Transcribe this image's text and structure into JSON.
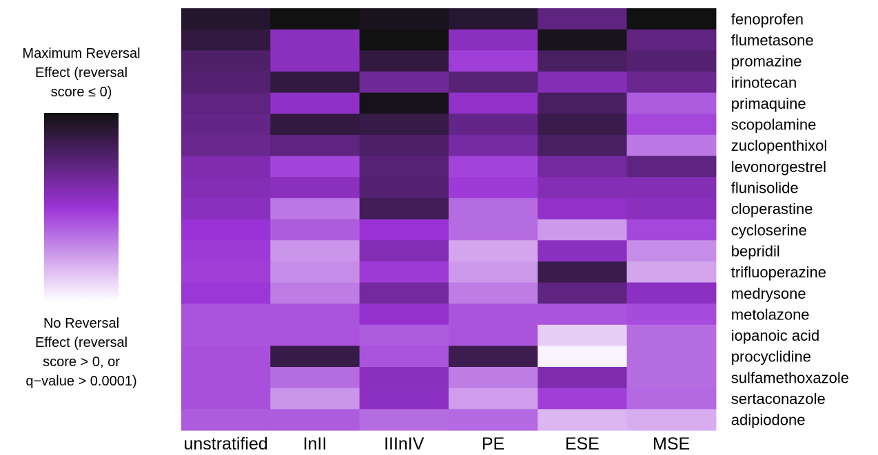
{
  "legend": {
    "max_label": [
      "Maximum Reversal",
      "Effect (reversal",
      "score ≤ 0)"
    ],
    "min_label": [
      "No Reversal",
      "Effect (reversal",
      "score > 0, or",
      "q−value > 0.0001)"
    ],
    "colors": {
      "max": "#111111",
      "mid": "#9a33d6",
      "min": "#ffffff"
    }
  },
  "chart_data": {
    "type": "heatmap",
    "title": "",
    "xlabel": "",
    "ylabel": "",
    "color_scale": "0 = No Reversal Effect (white), 1 = Maximum Reversal Effect (black), 0.5 = purple",
    "x_categories": [
      "unstratified",
      "InII",
      "IIInIV",
      "PE",
      "ESE",
      "MSE"
    ],
    "y_categories": [
      "fenoprofen",
      "flumetasone",
      "promazine",
      "irinotecan",
      "primaquine",
      "scopolamine",
      "zuclopenthixol",
      "levonorgestrel",
      "flunisolide",
      "cloperastine",
      "cycloserine",
      "bepridil",
      "trifluoperazine",
      "medrysone",
      "metolazone",
      "iopanoic acid",
      "procyclidine",
      "sulfamethoxazole",
      "sertaconazole",
      "adipiodone"
    ],
    "values": [
      [
        0.93,
        1.0,
        0.97,
        0.92,
        0.72,
        1.0
      ],
      [
        0.88,
        0.56,
        1.0,
        0.56,
        0.97,
        0.72
      ],
      [
        0.78,
        0.56,
        0.88,
        0.47,
        0.8,
        0.76
      ],
      [
        0.76,
        0.88,
        0.66,
        0.74,
        0.58,
        0.68
      ],
      [
        0.72,
        0.54,
        0.98,
        0.53,
        0.8,
        0.4
      ],
      [
        0.7,
        0.88,
        0.86,
        0.7,
        0.85,
        0.45
      ],
      [
        0.68,
        0.72,
        0.78,
        0.63,
        0.8,
        0.33
      ],
      [
        0.6,
        0.46,
        0.74,
        0.46,
        0.64,
        0.72
      ],
      [
        0.58,
        0.56,
        0.76,
        0.48,
        0.58,
        0.58
      ],
      [
        0.56,
        0.33,
        0.82,
        0.36,
        0.53,
        0.56
      ],
      [
        0.5,
        0.4,
        0.5,
        0.36,
        0.25,
        0.45
      ],
      [
        0.48,
        0.26,
        0.58,
        0.22,
        0.56,
        0.28
      ],
      [
        0.47,
        0.28,
        0.48,
        0.25,
        0.85,
        0.22
      ],
      [
        0.49,
        0.32,
        0.64,
        0.32,
        0.72,
        0.55
      ],
      [
        0.42,
        0.42,
        0.52,
        0.42,
        0.42,
        0.44
      ],
      [
        0.42,
        0.42,
        0.4,
        0.42,
        0.12,
        0.36
      ],
      [
        0.43,
        0.86,
        0.42,
        0.84,
        0.03,
        0.36
      ],
      [
        0.43,
        0.36,
        0.56,
        0.32,
        0.6,
        0.36
      ],
      [
        0.43,
        0.26,
        0.55,
        0.24,
        0.47,
        0.37
      ],
      [
        0.4,
        0.4,
        0.36,
        0.37,
        0.18,
        0.2
      ]
    ]
  }
}
